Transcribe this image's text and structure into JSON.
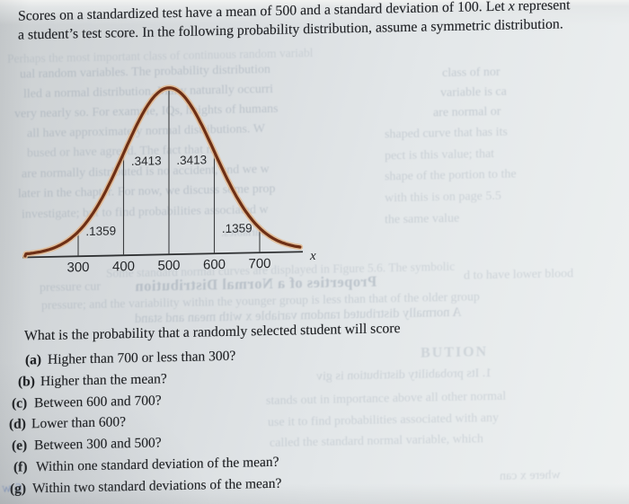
{
  "problem": {
    "line1_pre": "Scores on a standardized test have a mean of 500 and a standard deviation of 100. Let ",
    "line1_var": "x",
    "line1_post": " represent",
    "line2": "a student’s test score. In the following probability distribution, assume a symmetric distribution."
  },
  "chart_data": {
    "type": "line",
    "subtype": "normal-distribution-curve",
    "title": "",
    "xlabel": "x",
    "ylabel": "",
    "mean": 500,
    "std_dev": 100,
    "x_ticks": [
      "300",
      "400",
      "500",
      "600",
      "700"
    ],
    "x_tick_values": [
      300,
      400,
      500,
      600,
      700
    ],
    "xlim": [
      185,
      790
    ],
    "grid": "vertical reference lines at tick values from axis to curve",
    "legend": "none",
    "regions": [
      {
        "x_from": 300,
        "x_to": 400,
        "probability": 0.1359,
        "label": ".1359"
      },
      {
        "x_from": 400,
        "x_to": 500,
        "probability": 0.3413,
        "label": ".3413"
      },
      {
        "x_from": 500,
        "x_to": 600,
        "probability": 0.3413,
        "label": ".3413"
      },
      {
        "x_from": 600,
        "x_to": 700,
        "probability": 0.1359,
        "label": ".1359"
      }
    ],
    "curve_color": "#6e2f15",
    "curve_halo_color": "#e2b98f"
  },
  "question": {
    "intro": "What is the probability that a randomly selected student will score",
    "items": [
      {
        "label": "(a)",
        "text": "Higher than 700 or less than 300?"
      },
      {
        "label": "(b)",
        "text": "Higher than the mean?"
      },
      {
        "label": "(c)",
        "text": "Between 600 and 700?"
      },
      {
        "label": "(d)",
        "text": "Lower than 600?"
      },
      {
        "label": "(e)",
        "text": "Between 300 and 500?"
      },
      {
        "label": "(f)",
        "text": "Within one standard deviation of the mean?"
      },
      {
        "label": "(g)",
        "text": "Within two standard deviations of the mean?"
      }
    ]
  },
  "artifacts": [
    "Perhaps the most important class of continuous random variabl",
    "ual random variables. The probability distribution",
    "lled a normal distribution. Many naturally occurri",
    "very nearly so. For example, IQs, heights of humans",
    "all have approximately normal distributions. W",
    "bused or have agreed. The fact that m",
    "are normally distributed is no accident, and we w",
    "later in the chapter. For now, we discuss some prop",
    "investigate; but to find probabilities associated w",
    "class of nor",
    "variable is ca",
    "are normal or",
    "shaped curve that has its",
    "pect is this value; that",
    "shape of the portion to the",
    "with this is on page 5.5",
    "the same value",
    "variables.",
    "Some standard normal curves are displayed in Figure 5.6. The symbolic",
    "pressure cur",
    "Properties of a Normal Distribution",
    "d to have lower blood",
    "pressure; and the variability within the younger group is less than that of the older group",
    "A normally distributed random variable x with mean and stand",
    "BUTION",
    "1. Its probability distribution is giv",
    "stands out in importance above all other normal",
    "use it to find probabilities associated with any",
    "called the standard normal variable, which",
    "where x can",
    "6 w"
  ]
}
